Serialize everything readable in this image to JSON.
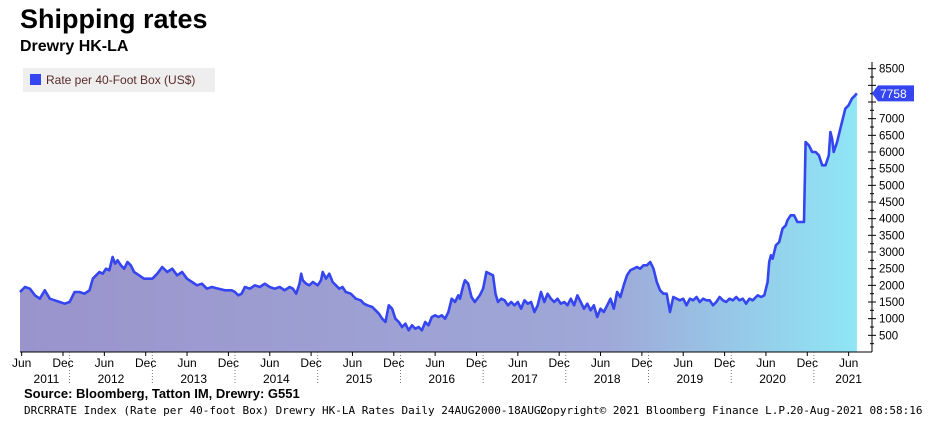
{
  "header": {
    "title": "Shipping rates",
    "subtitle": "Drewry HK-LA"
  },
  "footer": {
    "source": "Source: Bloomberg, Tatton IM, Drewry: G551",
    "index_info": "DRCRRATE Index (Rate per 40-foot Box) Drewry HK-LA Rates  Daily 24AUG2000-18AUG2",
    "copyright": "Copyright© 2021 Bloomberg Finance L.P.",
    "timestamp": "20-Aug-2021 08:58:16"
  },
  "colors": {
    "line": "#3545f0",
    "fill_top": "#8fe6f5",
    "fill_bottom": "#9a94cc",
    "legend_bg": "#eeeeee"
  },
  "chart_data": {
    "type": "area",
    "legend": [
      "Rate per 40-Foot Box (US$)"
    ],
    "legend_placement": "top-left",
    "last_value_label": "7758",
    "y_ticks": [
      500,
      1000,
      1500,
      2000,
      2500,
      3000,
      3500,
      4000,
      4500,
      5000,
      5500,
      6000,
      6500,
      7000,
      7500,
      8000,
      8500
    ],
    "ylim": [
      0,
      8700
    ],
    "x_range": [
      2011.4,
      2021.63
    ],
    "month_ticks": [
      {
        "label": "Jun",
        "x": 2011.42
      },
      {
        "label": "Dec",
        "x": 2011.92
      },
      {
        "label": "Jun",
        "x": 2012.42
      },
      {
        "label": "Dec",
        "x": 2012.92
      },
      {
        "label": "Jun",
        "x": 2013.42
      },
      {
        "label": "Dec",
        "x": 2013.92
      },
      {
        "label": "Jun",
        "x": 2014.42
      },
      {
        "label": "Dec",
        "x": 2014.92
      },
      {
        "label": "Jun",
        "x": 2015.42
      },
      {
        "label": "Dec",
        "x": 2015.92
      },
      {
        "label": "Jun",
        "x": 2016.42
      },
      {
        "label": "Dec",
        "x": 2016.92
      },
      {
        "label": "Jun",
        "x": 2017.42
      },
      {
        "label": "Dec",
        "x": 2017.92
      },
      {
        "label": "Jun",
        "x": 2018.42
      },
      {
        "label": "Dec",
        "x": 2018.92
      },
      {
        "label": "Jun",
        "x": 2019.42
      },
      {
        "label": "Dec",
        "x": 2019.92
      },
      {
        "label": "Jun",
        "x": 2020.42
      },
      {
        "label": "Dec",
        "x": 2020.92
      },
      {
        "label": "Jun",
        "x": 2021.42
      }
    ],
    "year_labels": [
      {
        "label": "2011",
        "x": 2011.72
      },
      {
        "label": "2012",
        "x": 2012.5
      },
      {
        "label": "2013",
        "x": 2013.5
      },
      {
        "label": "2014",
        "x": 2014.5
      },
      {
        "label": "2015",
        "x": 2015.5
      },
      {
        "label": "2016",
        "x": 2016.5
      },
      {
        "label": "2017",
        "x": 2017.5
      },
      {
        "label": "2018",
        "x": 2018.5
      },
      {
        "label": "2019",
        "x": 2019.5
      },
      {
        "label": "2020",
        "x": 2020.5
      },
      {
        "label": "2021",
        "x": 2021.42
      }
    ],
    "series": [
      {
        "name": "Rate per 40-Foot Box (US$)",
        "points": [
          [
            2011.4,
            1800
          ],
          [
            2011.46,
            1950
          ],
          [
            2011.52,
            1900
          ],
          [
            2011.58,
            1700
          ],
          [
            2011.64,
            1600
          ],
          [
            2011.7,
            1850
          ],
          [
            2011.76,
            1600
          ],
          [
            2011.82,
            1550
          ],
          [
            2011.88,
            1500
          ],
          [
            2011.94,
            1450
          ],
          [
            2012.0,
            1500
          ],
          [
            2012.06,
            1800
          ],
          [
            2012.12,
            1800
          ],
          [
            2012.18,
            1750
          ],
          [
            2012.24,
            1850
          ],
          [
            2012.28,
            2200
          ],
          [
            2012.32,
            2300
          ],
          [
            2012.36,
            2400
          ],
          [
            2012.4,
            2350
          ],
          [
            2012.44,
            2500
          ],
          [
            2012.48,
            2450
          ],
          [
            2012.52,
            2850
          ],
          [
            2012.55,
            2650
          ],
          [
            2012.58,
            2750
          ],
          [
            2012.62,
            2600
          ],
          [
            2012.66,
            2500
          ],
          [
            2012.7,
            2700
          ],
          [
            2012.74,
            2600
          ],
          [
            2012.78,
            2400
          ],
          [
            2012.84,
            2300
          ],
          [
            2012.9,
            2200
          ],
          [
            2013.0,
            2200
          ],
          [
            2013.06,
            2350
          ],
          [
            2013.12,
            2550
          ],
          [
            2013.18,
            2400
          ],
          [
            2013.24,
            2500
          ],
          [
            2013.3,
            2300
          ],
          [
            2013.36,
            2400
          ],
          [
            2013.42,
            2200
          ],
          [
            2013.48,
            2100
          ],
          [
            2013.54,
            2000
          ],
          [
            2013.6,
            2050
          ],
          [
            2013.66,
            1900
          ],
          [
            2013.72,
            1950
          ],
          [
            2013.8,
            1900
          ],
          [
            2013.88,
            1850
          ],
          [
            2013.96,
            1850
          ],
          [
            2014.0,
            1800
          ],
          [
            2014.04,
            1700
          ],
          [
            2014.08,
            1750
          ],
          [
            2014.12,
            1950
          ],
          [
            2014.18,
            1900
          ],
          [
            2014.24,
            2000
          ],
          [
            2014.3,
            1950
          ],
          [
            2014.36,
            2050
          ],
          [
            2014.42,
            1950
          ],
          [
            2014.48,
            1900
          ],
          [
            2014.54,
            1950
          ],
          [
            2014.6,
            1850
          ],
          [
            2014.66,
            1950
          ],
          [
            2014.7,
            1900
          ],
          [
            2014.74,
            1750
          ],
          [
            2014.78,
            2050
          ],
          [
            2014.8,
            2350
          ],
          [
            2014.82,
            2150
          ],
          [
            2014.86,
            2050
          ],
          [
            2014.9,
            2000
          ],
          [
            2014.94,
            2100
          ],
          [
            2015.0,
            2000
          ],
          [
            2015.04,
            2150
          ],
          [
            2015.06,
            2400
          ],
          [
            2015.1,
            2200
          ],
          [
            2015.14,
            2350
          ],
          [
            2015.18,
            2100
          ],
          [
            2015.22,
            2000
          ],
          [
            2015.26,
            1900
          ],
          [
            2015.3,
            1950
          ],
          [
            2015.34,
            1800
          ],
          [
            2015.4,
            1750
          ],
          [
            2015.46,
            1600
          ],
          [
            2015.52,
            1550
          ],
          [
            2015.56,
            1450
          ],
          [
            2015.6,
            1400
          ],
          [
            2015.66,
            1350
          ],
          [
            2015.7,
            1250
          ],
          [
            2015.74,
            1150
          ],
          [
            2015.78,
            1000
          ],
          [
            2015.82,
            900
          ],
          [
            2015.86,
            1400
          ],
          [
            2015.9,
            1300
          ],
          [
            2015.94,
            1000
          ],
          [
            2015.98,
            900
          ],
          [
            2016.02,
            750
          ],
          [
            2016.06,
            850
          ],
          [
            2016.1,
            650
          ],
          [
            2016.14,
            800
          ],
          [
            2016.18,
            700
          ],
          [
            2016.22,
            750
          ],
          [
            2016.26,
            650
          ],
          [
            2016.3,
            900
          ],
          [
            2016.34,
            800
          ],
          [
            2016.38,
            1050
          ],
          [
            2016.42,
            1100
          ],
          [
            2016.46,
            1050
          ],
          [
            2016.5,
            1100
          ],
          [
            2016.54,
            1000
          ],
          [
            2016.58,
            1200
          ],
          [
            2016.62,
            1600
          ],
          [
            2016.66,
            1500
          ],
          [
            2016.7,
            1700
          ],
          [
            2016.72,
            1600
          ],
          [
            2016.76,
            2000
          ],
          [
            2016.78,
            2150
          ],
          [
            2016.82,
            2050
          ],
          [
            2016.86,
            1650
          ],
          [
            2016.9,
            1500
          ],
          [
            2016.96,
            1700
          ],
          [
            2017.0,
            1900
          ],
          [
            2017.04,
            2400
          ],
          [
            2017.08,
            2350
          ],
          [
            2017.12,
            2300
          ],
          [
            2017.15,
            1750
          ],
          [
            2017.18,
            1500
          ],
          [
            2017.22,
            1600
          ],
          [
            2017.26,
            1550
          ],
          [
            2017.3,
            1400
          ],
          [
            2017.34,
            1500
          ],
          [
            2017.38,
            1400
          ],
          [
            2017.42,
            1500
          ],
          [
            2017.46,
            1300
          ],
          [
            2017.5,
            1550
          ],
          [
            2017.54,
            1450
          ],
          [
            2017.58,
            1500
          ],
          [
            2017.62,
            1200
          ],
          [
            2017.66,
            1400
          ],
          [
            2017.7,
            1800
          ],
          [
            2017.74,
            1500
          ],
          [
            2017.78,
            1750
          ],
          [
            2017.82,
            1600
          ],
          [
            2017.86,
            1500
          ],
          [
            2017.9,
            1600
          ],
          [
            2017.94,
            1450
          ],
          [
            2017.98,
            1500
          ],
          [
            2018.02,
            1400
          ],
          [
            2018.06,
            1600
          ],
          [
            2018.1,
            1400
          ],
          [
            2018.14,
            1700
          ],
          [
            2018.18,
            1500
          ],
          [
            2018.22,
            1300
          ],
          [
            2018.26,
            1450
          ],
          [
            2018.3,
            1250
          ],
          [
            2018.34,
            1400
          ],
          [
            2018.38,
            1050
          ],
          [
            2018.42,
            1300
          ],
          [
            2018.46,
            1200
          ],
          [
            2018.5,
            1400
          ],
          [
            2018.54,
            1600
          ],
          [
            2018.58,
            1300
          ],
          [
            2018.62,
            1800
          ],
          [
            2018.66,
            1650
          ],
          [
            2018.7,
            2000
          ],
          [
            2018.74,
            2300
          ],
          [
            2018.78,
            2450
          ],
          [
            2018.82,
            2500
          ],
          [
            2018.86,
            2550
          ],
          [
            2018.9,
            2500
          ],
          [
            2018.94,
            2600
          ],
          [
            2018.98,
            2600
          ],
          [
            2019.02,
            2700
          ],
          [
            2019.06,
            2500
          ],
          [
            2019.1,
            2100
          ],
          [
            2019.14,
            1850
          ],
          [
            2019.18,
            1750
          ],
          [
            2019.22,
            1750
          ],
          [
            2019.26,
            1200
          ],
          [
            2019.3,
            1650
          ],
          [
            2019.34,
            1600
          ],
          [
            2019.38,
            1550
          ],
          [
            2019.42,
            1600
          ],
          [
            2019.46,
            1400
          ],
          [
            2019.5,
            1600
          ],
          [
            2019.54,
            1550
          ],
          [
            2019.58,
            1650
          ],
          [
            2019.62,
            1500
          ],
          [
            2019.66,
            1600
          ],
          [
            2019.7,
            1550
          ],
          [
            2019.74,
            1550
          ],
          [
            2019.78,
            1400
          ],
          [
            2019.82,
            1500
          ],
          [
            2019.86,
            1650
          ],
          [
            2019.9,
            1550
          ],
          [
            2019.94,
            1500
          ],
          [
            2019.98,
            1600
          ],
          [
            2020.02,
            1550
          ],
          [
            2020.06,
            1650
          ],
          [
            2020.1,
            1550
          ],
          [
            2020.14,
            1600
          ],
          [
            2020.18,
            1450
          ],
          [
            2020.22,
            1600
          ],
          [
            2020.26,
            1550
          ],
          [
            2020.3,
            1650
          ],
          [
            2020.32,
            1700
          ],
          [
            2020.36,
            1650
          ],
          [
            2020.4,
            1700
          ],
          [
            2020.44,
            2100
          ],
          [
            2020.46,
            2700
          ],
          [
            2020.48,
            2900
          ],
          [
            2020.5,
            2800
          ],
          [
            2020.54,
            3200
          ],
          [
            2020.58,
            3300
          ],
          [
            2020.62,
            3700
          ],
          [
            2020.66,
            3800
          ],
          [
            2020.68,
            3950
          ],
          [
            2020.72,
            4100
          ],
          [
            2020.76,
            4100
          ],
          [
            2020.8,
            3900
          ],
          [
            2020.84,
            3900
          ],
          [
            2020.88,
            3900
          ],
          [
            2020.9,
            6300
          ],
          [
            2020.94,
            6200
          ],
          [
            2020.98,
            6000
          ],
          [
            2021.02,
            6000
          ],
          [
            2021.06,
            5900
          ],
          [
            2021.1,
            5600
          ],
          [
            2021.14,
            5600
          ],
          [
            2021.18,
            5900
          ],
          [
            2021.2,
            6600
          ],
          [
            2021.22,
            6400
          ],
          [
            2021.24,
            6000
          ],
          [
            2021.28,
            6300
          ],
          [
            2021.3,
            6500
          ],
          [
            2021.34,
            6900
          ],
          [
            2021.38,
            7300
          ],
          [
            2021.42,
            7400
          ],
          [
            2021.46,
            7600
          ],
          [
            2021.5,
            7700
          ],
          [
            2021.52,
            7758
          ]
        ]
      }
    ]
  }
}
